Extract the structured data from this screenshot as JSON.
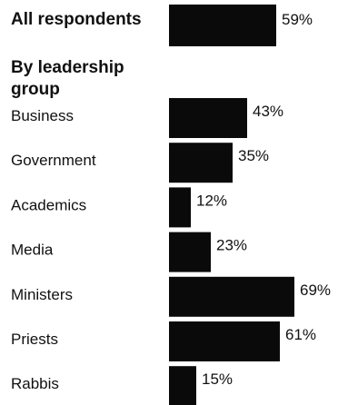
{
  "chart_data": {
    "type": "bar",
    "orientation": "horizontal",
    "value_suffix": "%",
    "total": {
      "category": "All respondents",
      "value": 59
    },
    "group_heading": "By leadership group",
    "categories": [
      "Business",
      "Government",
      "Academics",
      "Media",
      "Ministers",
      "Priests",
      "Rabbis"
    ],
    "values": [
      43,
      35,
      12,
      23,
      69,
      61,
      15
    ],
    "xlim": [
      0,
      100
    ],
    "grid": false,
    "legend": "none",
    "bar_color": "#0a0a0a"
  }
}
